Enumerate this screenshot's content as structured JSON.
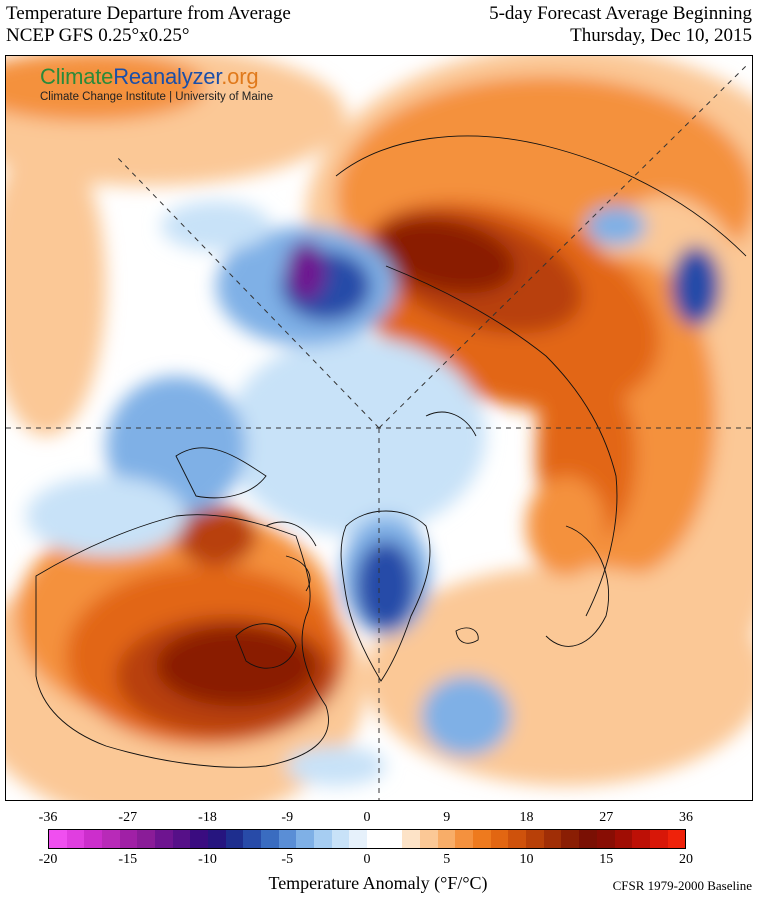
{
  "header": {
    "title_left": "Temperature Departure from Average",
    "subtitle_left": "NCEP GFS 0.25°x0.25°",
    "title_right": "5-day Forecast Average Beginning",
    "subtitle_right": "Thursday, Dec 10, 2015"
  },
  "brand": {
    "name_part1": "Climate",
    "name_part2": "Reanalyzer",
    "name_part3": ".org",
    "subtitle": "Climate Change Institute | University of Maine"
  },
  "colorbar": {
    "fahrenheit_ticks": [
      "-36",
      "-27",
      "-18",
      "-9",
      "0",
      "9",
      "18",
      "27",
      "36"
    ],
    "celsius_ticks": [
      "-20",
      "-15",
      "-10",
      "-5",
      "0",
      "5",
      "10",
      "15",
      "20"
    ],
    "label": "Temperature Anomaly (°F/°C)",
    "baseline": "CFSR 1979-2000 Baseline",
    "colors": [
      "#f04ff0",
      "#e03ee0",
      "#cc2ecc",
      "#b82ab8",
      "#a020a6",
      "#8a1c98",
      "#6e1490",
      "#561088",
      "#3a0c80",
      "#26157f",
      "#1e2e8e",
      "#284ba8",
      "#3a6cc0",
      "#5a8ed6",
      "#7fb0e6",
      "#a6cdf2",
      "#c8e2f8",
      "#e6f1fb",
      "#ffffff",
      "#ffffff",
      "#fde3c7",
      "#fbc896",
      "#f8ad68",
      "#f4913e",
      "#ee7a1e",
      "#e26612",
      "#cf520c",
      "#b84008",
      "#a02e06",
      "#8a1e04",
      "#7a1004",
      "#880d04",
      "#a00d04",
      "#bd1006",
      "#d81708",
      "#ef220a"
    ]
  },
  "map": {
    "palette": {
      "warm_light": "#fbc896",
      "warm_mid": "#f4913e",
      "warm_strong": "#e26612",
      "warm_deep": "#b84008",
      "warm_max": "#8a1e04",
      "cool_light": "#c8e2f8",
      "cool_mid": "#7fb0e6",
      "cool_strong": "#284ba8",
      "cool_deep": "#26157f",
      "cool_max": "#6e1490"
    }
  }
}
